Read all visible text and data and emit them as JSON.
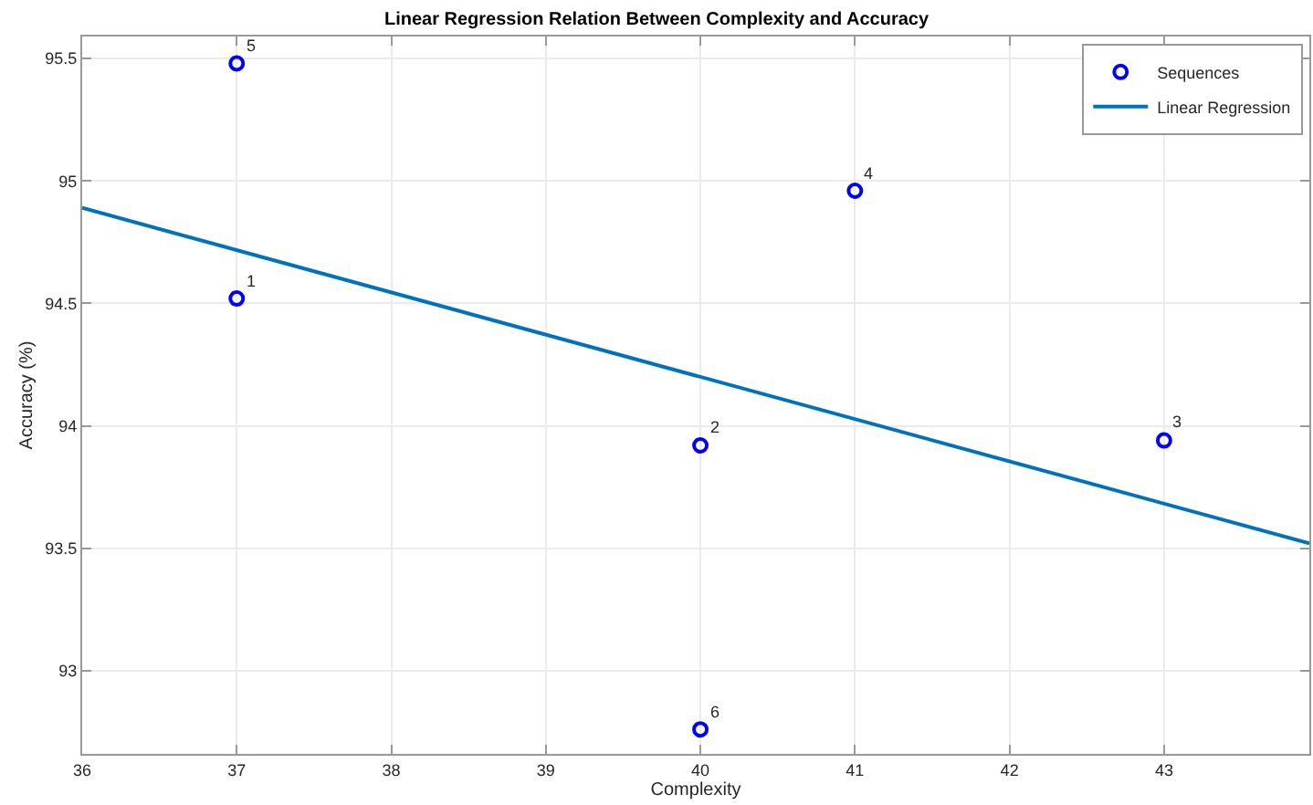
{
  "chart_data": {
    "type": "scatter",
    "title": "Linear Regression Relation Between Complexity and Accuracy",
    "xlabel": "Complexity",
    "ylabel": "Accuracy (%)",
    "xlim": [
      36,
      43.94
    ],
    "ylim": [
      92.66,
      95.59
    ],
    "xticks": [
      36,
      37,
      38,
      39,
      40,
      41,
      42,
      43
    ],
    "yticks": [
      93,
      93.5,
      94,
      94.5,
      95,
      95.5
    ],
    "grid": true,
    "legend": "top right",
    "marker": "circle",
    "series": [
      {
        "name": "Sequences",
        "color": "#0000ff",
        "x": [
          37,
          40,
          43,
          41,
          37,
          40
        ],
        "values": [
          94.52,
          93.92,
          93.94,
          94.96,
          95.48,
          92.76
        ]
      },
      {
        "name": "Linear Regression",
        "type": "line",
        "color": "#0072bd",
        "marker": "none",
        "line_style": "solid",
        "x": [
          36,
          43.94
        ],
        "values": [
          94.89,
          93.52
        ]
      }
    ],
    "annotations": [
      {
        "text": "1",
        "x": 37,
        "y": 94.52
      },
      {
        "text": "2",
        "x": 40,
        "y": 93.92
      },
      {
        "text": "3",
        "x": 43,
        "y": 93.94
      },
      {
        "text": "4",
        "x": 41,
        "y": 94.96
      },
      {
        "text": "5",
        "x": 37,
        "y": 95.48
      },
      {
        "text": "6",
        "x": 40,
        "y": 92.76
      }
    ]
  }
}
